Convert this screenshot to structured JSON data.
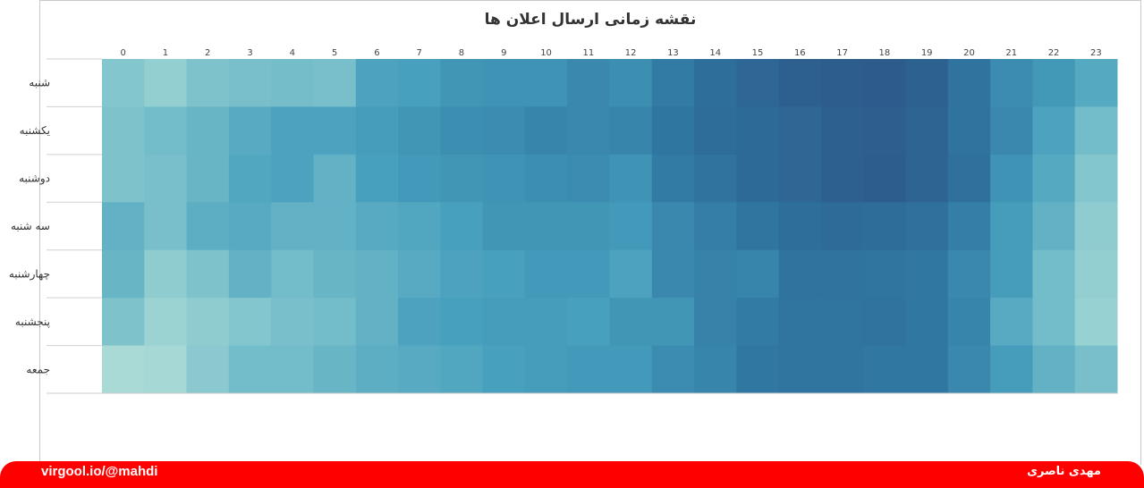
{
  "chart_data": {
    "type": "heatmap",
    "title": "نقشه زمانی ارسال اعلان ها",
    "x": [
      "0",
      "1",
      "2",
      "3",
      "4",
      "5",
      "6",
      "7",
      "8",
      "9",
      "10",
      "11",
      "12",
      "13",
      "14",
      "15",
      "16",
      "17",
      "18",
      "19",
      "20",
      "21",
      "22",
      "23"
    ],
    "y": [
      "شنبه",
      "یکشنبه",
      "دوشنبه",
      "سه شنبه",
      "چهارشنبه",
      "پنجشنبه",
      "جمعه"
    ],
    "values": [
      [
        28,
        22,
        30,
        32,
        33,
        32,
        48,
        50,
        56,
        58,
        58,
        64,
        60,
        72,
        82,
        88,
        95,
        97,
        98,
        94,
        78,
        62,
        55,
        45
      ],
      [
        30,
        34,
        38,
        44,
        48,
        48,
        52,
        56,
        60,
        62,
        66,
        64,
        66,
        75,
        84,
        86,
        89,
        95,
        96,
        91,
        78,
        64,
        48,
        34
      ],
      [
        30,
        32,
        38,
        46,
        48,
        40,
        50,
        54,
        56,
        58,
        60,
        62,
        58,
        72,
        78,
        86,
        89,
        95,
        97,
        91,
        80,
        58,
        45,
        28
      ],
      [
        40,
        32,
        42,
        44,
        40,
        40,
        44,
        46,
        50,
        56,
        56,
        56,
        54,
        64,
        70,
        76,
        82,
        85,
        83,
        80,
        70,
        52,
        40,
        24
      ],
      [
        38,
        24,
        30,
        40,
        34,
        38,
        40,
        44,
        48,
        50,
        54,
        54,
        48,
        64,
        68,
        66,
        78,
        78,
        76,
        74,
        64,
        52,
        34,
        22
      ],
      [
        30,
        18,
        24,
        28,
        32,
        34,
        40,
        48,
        50,
        52,
        52,
        50,
        56,
        56,
        68,
        72,
        76,
        76,
        78,
        74,
        66,
        44,
        34,
        20
      ],
      [
        12,
        13,
        26,
        34,
        34,
        38,
        42,
        44,
        46,
        50,
        52,
        54,
        54,
        62,
        66,
        74,
        76,
        76,
        74,
        74,
        64,
        52,
        40,
        32
      ]
    ],
    "colorscale": [
      "#c3e7da",
      "#8ccbd0",
      "#47a0bd",
      "#2f76a1",
      "#2d5a8a"
    ],
    "vmin": 0,
    "vmax": 100
  },
  "footer": {
    "left_text": "virgool.io/@mahdi",
    "right_text": "مهدی ناصری"
  },
  "colors": {
    "footer_bg": "#ff0000",
    "title": "#333333"
  }
}
